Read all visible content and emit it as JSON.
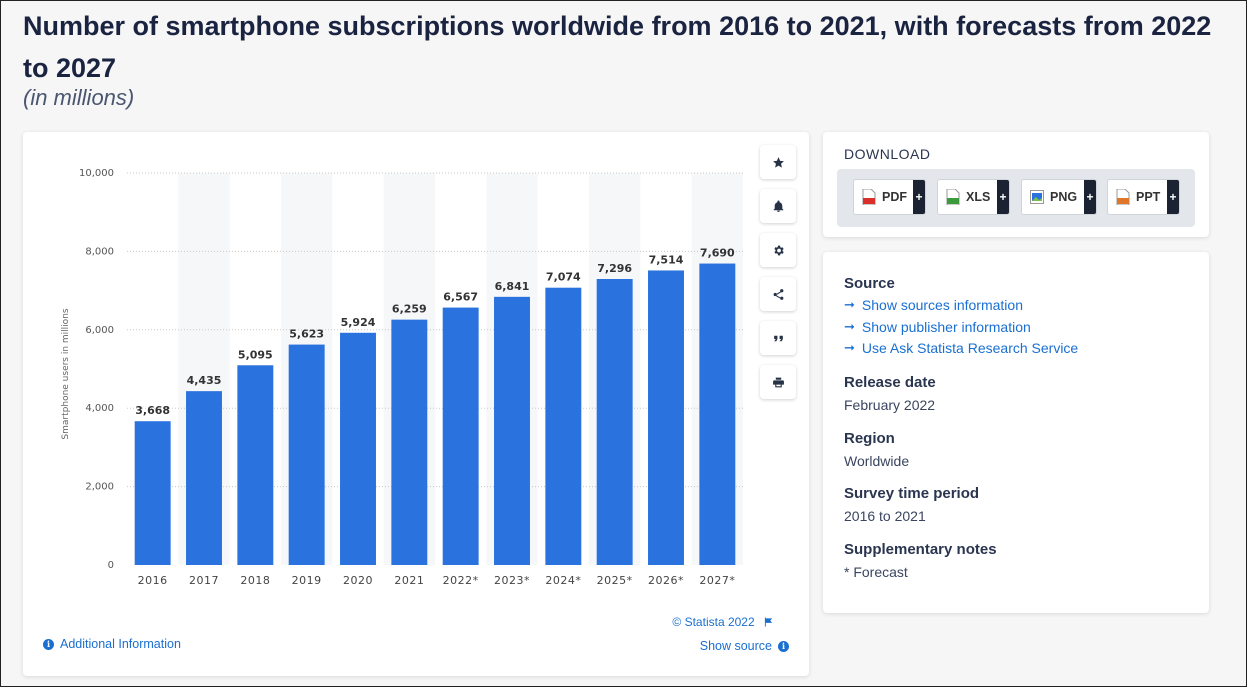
{
  "header": {
    "title": "Number of smartphone subscriptions worldwide from 2016 to 2021, with forecasts from 2022 to 2027",
    "subtitle": "(in millions)"
  },
  "chart": {
    "copyright": "© Statista 2022",
    "show_source": "Show source",
    "additional_info": "Additional Information",
    "tools": [
      "star-icon",
      "bell-icon",
      "gear-icon",
      "share-icon",
      "quote-icon",
      "print-icon"
    ]
  },
  "chart_data": {
    "type": "bar",
    "categories": [
      "2016",
      "2017",
      "2018",
      "2019",
      "2020",
      "2021",
      "2022*",
      "2023*",
      "2024*",
      "2025*",
      "2026*",
      "2027*"
    ],
    "values": [
      3668,
      4435,
      5095,
      5623,
      5924,
      6259,
      6567,
      6841,
      7074,
      7296,
      7514,
      7690
    ],
    "value_labels": [
      "3,668",
      "4,435",
      "5,095",
      "5,623",
      "5,924",
      "6,259",
      "6,567",
      "6,841",
      "7,074",
      "7,296",
      "7,514",
      "7,690"
    ],
    "title": "",
    "xlabel": "",
    "ylabel": "Smartphone users in millions",
    "ylim": [
      0,
      10000
    ],
    "yticks": [
      0,
      2000,
      4000,
      6000,
      8000,
      10000
    ],
    "ytick_labels": [
      "0",
      "2,000",
      "4,000",
      "6,000",
      "8,000",
      "10,000"
    ],
    "grid": true,
    "bar_color": "#2a72de"
  },
  "download": {
    "title": "DOWNLOAD",
    "buttons": [
      {
        "label": "PDF",
        "icon": "pdf-icon",
        "color": "#d9302c"
      },
      {
        "label": "XLS",
        "icon": "xls-icon",
        "color": "#3c9a3c"
      },
      {
        "label": "PNG",
        "icon": "png-icon",
        "color": "#2a72de"
      },
      {
        "label": "PPT",
        "icon": "ppt-icon",
        "color": "#e0762a"
      }
    ],
    "plus": "+"
  },
  "info": {
    "source_heading": "Source",
    "links": [
      "Show sources information",
      "Show publisher information",
      "Use Ask Statista Research Service"
    ],
    "release_heading": "Release date",
    "release_value": "February 2022",
    "region_heading": "Region",
    "region_value": "Worldwide",
    "period_heading": "Survey time period",
    "period_value": "2016 to 2021",
    "notes_heading": "Supplementary notes",
    "notes_value": "* Forecast"
  }
}
